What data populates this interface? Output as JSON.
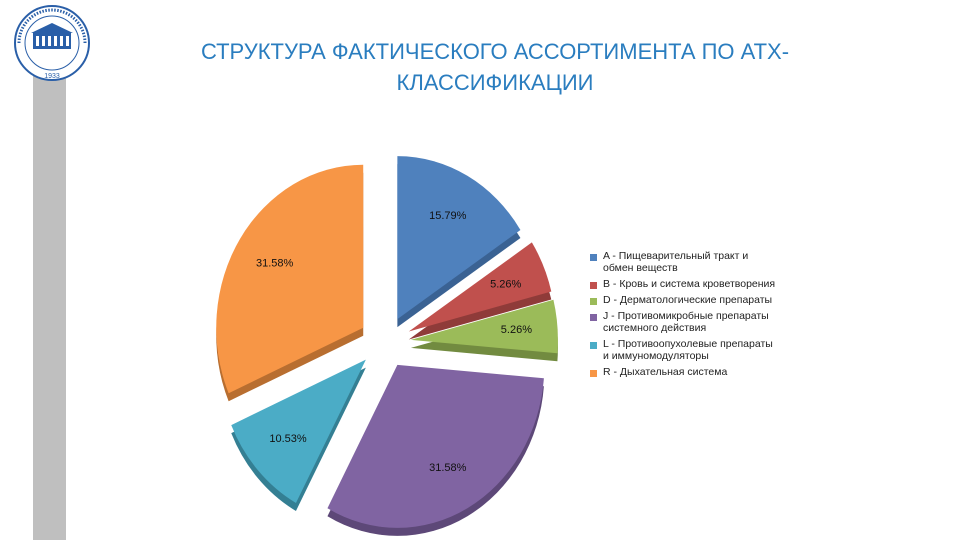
{
  "title": "СТРУКТУРА ФАКТИЧЕСКОГО АССОРТИМЕНТА ПО АТХ-КЛАССИФИКАЦИИ",
  "logo": {
    "year": "1933",
    "icon": "university-building-seal-icon"
  },
  "chart_data": {
    "type": "pie",
    "style": "3d-exploded",
    "legend_position": "right",
    "slices": [
      {
        "label": "A - Пищеварительный тракт и обмен веществ",
        "value": 15.79,
        "value_label": "15.79%",
        "color": "#4f81bd",
        "dark": "#3a6293"
      },
      {
        "label": "B - Кровь и система кроветворения",
        "value": 5.26,
        "value_label": "5.26%",
        "color": "#c0504d",
        "dark": "#8f3b39"
      },
      {
        "label": "D - Дерматологические препараты",
        "value": 5.26,
        "value_label": "5.26%",
        "color": "#9bbb59",
        "dark": "#728b40"
      },
      {
        "label": "J - Противомикробные препараты системного действия",
        "value": 31.58,
        "value_label": "31.58%",
        "color": "#8064a2",
        "dark": "#5d4878"
      },
      {
        "label": "L - Противоопухолевые препараты и иммуномодуляторы",
        "value": 10.53,
        "value_label": "10.53%",
        "color": "#4bacc6",
        "dark": "#347f93"
      },
      {
        "label": "R - Дыхательная система",
        "value": 31.58,
        "value_label": "31.58%",
        "color": "#f79646",
        "dark": "#b86e30"
      }
    ]
  }
}
